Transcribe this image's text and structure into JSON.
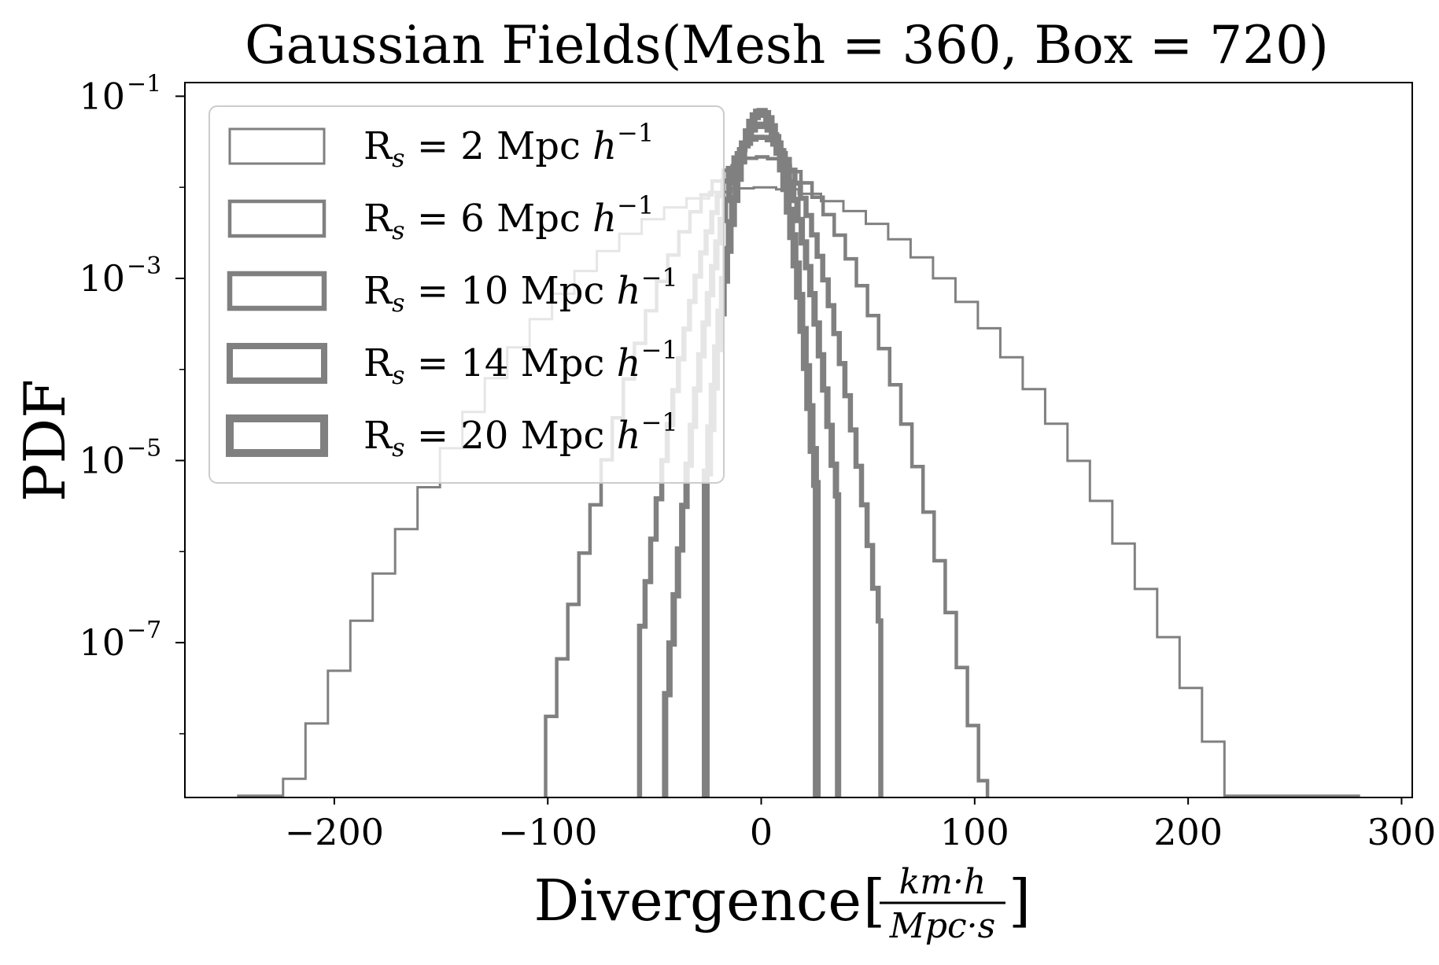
{
  "chart_data": {
    "type": "histogram-step",
    "title": "Gaussian Fields(Mesh = 360, Box = 720)",
    "xlabel_text": "Divergence",
    "xlabel_unit_numerator": "km·h",
    "xlabel_unit_denominator": "Mpc·s",
    "ylabel": "PDF",
    "xlim": [
      -270,
      305
    ],
    "ylim_log10": [
      -8.7,
      -0.85
    ],
    "yscale": "log",
    "grid": false,
    "legend_position": "upper-left",
    "xticks": [
      -200,
      -100,
      0,
      100,
      200,
      300
    ],
    "xtick_labels": [
      "−200",
      "−100",
      "0",
      "100",
      "200",
      "300"
    ],
    "yticks_log10": [
      -1,
      -3,
      -5,
      -7
    ],
    "ytick_bases": [
      "10",
      "10",
      "10",
      "10"
    ],
    "ytick_exponents": [
      "−1",
      "−3",
      "−5",
      "−7"
    ],
    "line_color": "#808080",
    "legend": [
      {
        "prefix": "R",
        "subscript": "s",
        "value": "= 2 Mpc",
        "h": "h",
        "exp": "−1"
      },
      {
        "prefix": "R",
        "subscript": "s",
        "value": "= 6 Mpc",
        "h": "h",
        "exp": "−1"
      },
      {
        "prefix": "R",
        "subscript": "s",
        "value": "= 10 Mpc",
        "h": "h",
        "exp": "−1"
      },
      {
        "prefix": "R",
        "subscript": "s",
        "value": "= 14 Mpc",
        "h": "h",
        "exp": "−1"
      },
      {
        "prefix": "R",
        "subscript": "s",
        "value": "= 20 Mpc",
        "h": "h",
        "exp": "−1"
      }
    ],
    "series": [
      {
        "name": "Rs = 2 Mpc h^-1",
        "smoothing_mpc": 2,
        "sigma": 40,
        "xmin": -245,
        "xmax": 280,
        "bin_width": 10.5,
        "linewidth": 3
      },
      {
        "name": "Rs = 6 Mpc h^-1",
        "smoothing_mpc": 6,
        "sigma": 18.5,
        "xmin": -101,
        "xmax": 106,
        "bin_width": 5.2,
        "linewidth": 4.5
      },
      {
        "name": "Rs = 10 Mpc h^-1",
        "smoothing_mpc": 10,
        "sigma": 11.2,
        "xmin": -57,
        "xmax": 56,
        "bin_width": 2.6,
        "linewidth": 6.5
      },
      {
        "name": "Rs = 14 Mpc h^-1",
        "smoothing_mpc": 14,
        "sigma": 8.2,
        "xmin": -45,
        "xmax": 36,
        "bin_width": 2.0,
        "linewidth": 8
      },
      {
        "name": "Rs = 20 Mpc h^-1",
        "smoothing_mpc": 20,
        "sigma": 5.9,
        "xmin": -26,
        "xmax": 26,
        "bin_width": 1.6,
        "linewidth": 10
      }
    ]
  }
}
